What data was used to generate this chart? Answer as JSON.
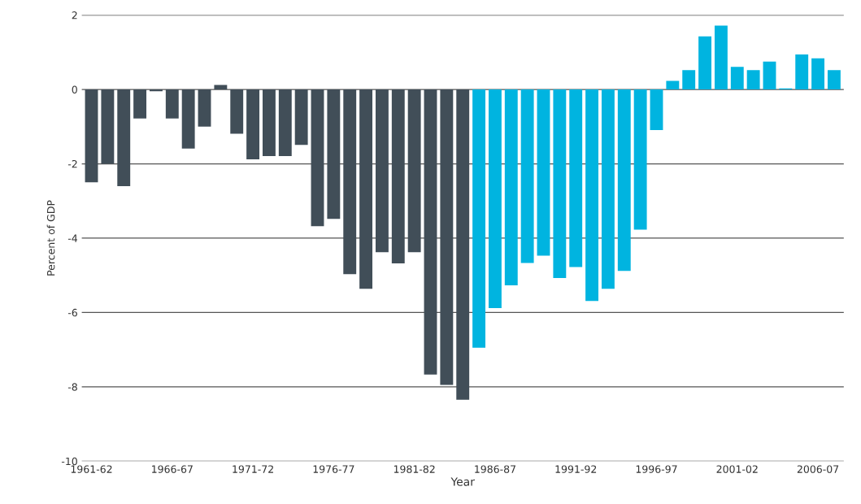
{
  "chart_data": {
    "type": "bar",
    "xlabel": "Year",
    "ylabel": "Percent of GDP",
    "categories": [
      "1961-62",
      null,
      null,
      null,
      null,
      "1966-67",
      null,
      null,
      null,
      null,
      "1971-72",
      null,
      null,
      null,
      null,
      "1976-77",
      null,
      null,
      null,
      null,
      "1981-82",
      null,
      null,
      null,
      null,
      "1986-87",
      null,
      null,
      null,
      null,
      "1991-92",
      null,
      null,
      null,
      null,
      "1996-97",
      null,
      null,
      null,
      null,
      "2001-02",
      null,
      null,
      null,
      null,
      "2006-07",
      null
    ],
    "values": [
      -2.5,
      -2.0,
      -2.6,
      -0.78,
      -0.05,
      -0.78,
      -1.59,
      -1.0,
      0.12,
      -1.19,
      -1.88,
      -1.79,
      -1.79,
      -1.49,
      -3.68,
      -3.48,
      -4.97,
      -5.36,
      -4.38,
      -4.68,
      -4.38,
      -7.67,
      -7.95,
      -8.35,
      -6.95,
      -5.88,
      -5.27,
      -4.67,
      -4.47,
      -5.07,
      -4.78,
      -5.69,
      -5.36,
      -4.88,
      -3.77,
      -1.09,
      0.23,
      0.52,
      1.43,
      1.72,
      0.61,
      0.52,
      0.75,
      0.03,
      0.94,
      0.84,
      0.52
    ],
    "colors": [
      "#414e58",
      "#414e58",
      "#414e58",
      "#414e58",
      "#414e58",
      "#414e58",
      "#414e58",
      "#414e58",
      "#414e58",
      "#414e58",
      "#414e58",
      "#414e58",
      "#414e58",
      "#414e58",
      "#414e58",
      "#414e58",
      "#414e58",
      "#414e58",
      "#414e58",
      "#414e58",
      "#414e58",
      "#414e58",
      "#414e58",
      "#414e58",
      "#00b4e0",
      "#00b4e0",
      "#00b4e0",
      "#00b4e0",
      "#00b4e0",
      "#00b4e0",
      "#00b4e0",
      "#00b4e0",
      "#00b4e0",
      "#00b4e0",
      "#00b4e0",
      "#00b4e0",
      "#00b4e0",
      "#00b4e0",
      "#00b4e0",
      "#00b4e0",
      "#00b4e0",
      "#00b4e0",
      "#00b4e0",
      "#00b4e0",
      "#00b4e0",
      "#00b4e0",
      "#00b4e0"
    ],
    "ylim": [
      -10,
      2
    ],
    "yticks": [
      -10,
      -8,
      -6,
      -4,
      -2,
      0,
      2
    ],
    "grid": "y"
  }
}
